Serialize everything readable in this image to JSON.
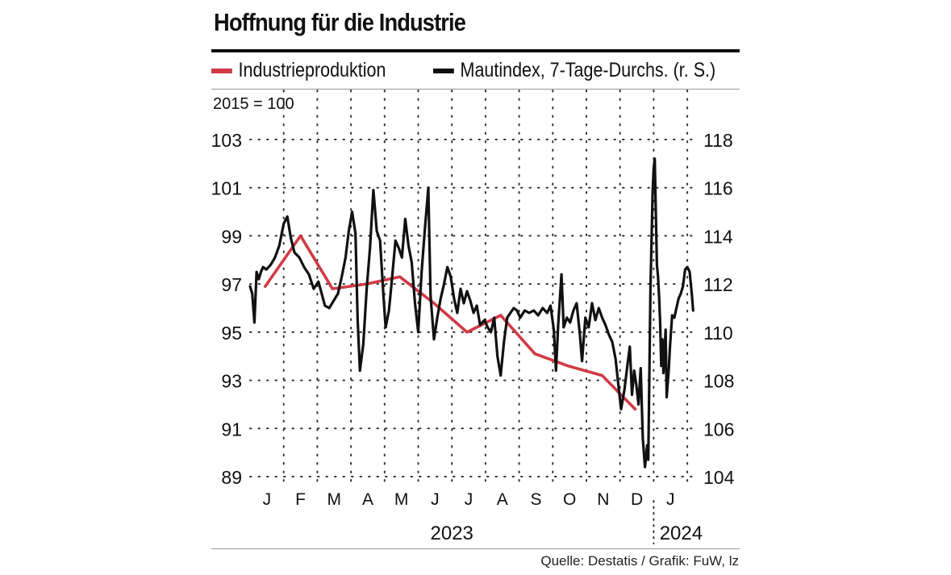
{
  "title": "Hoffnung für die Industrie",
  "unit_note": "2015 = 100",
  "source": "Quelle: Destatis / Grafik: FuW, lz",
  "colors": {
    "red": "#d13a45",
    "black": "#111111",
    "grid": "#333333"
  },
  "chart_data": {
    "type": "line",
    "x_axis": {
      "months": [
        "J",
        "F",
        "M",
        "A",
        "M",
        "J",
        "J",
        "A",
        "S",
        "O",
        "N",
        "D",
        "J"
      ],
      "years": [
        "2023",
        "2024"
      ]
    },
    "y_left": {
      "range": [
        89,
        103
      ],
      "ticks": [
        89,
        91,
        93,
        95,
        97,
        99,
        101,
        103
      ]
    },
    "y_right": {
      "range": [
        104,
        118
      ],
      "ticks": [
        104,
        106,
        108,
        110,
        112,
        114,
        116,
        118
      ]
    },
    "grid": "dotted",
    "legend_position": "top",
    "series": [
      {
        "name": "Industrieproduktion",
        "axis": "left",
        "color": "#d13a45",
        "points": [
          [
            "2023-01",
            96.9
          ],
          [
            "2023-02",
            99.0
          ],
          [
            "2023-03",
            96.8
          ],
          [
            "2023-04",
            97.0
          ],
          [
            "2023-05",
            97.3
          ],
          [
            "2023-06",
            96.2
          ],
          [
            "2023-07",
            95.0
          ],
          [
            "2023-08",
            95.7
          ],
          [
            "2023-09",
            94.1
          ],
          [
            "2023-10",
            93.6
          ],
          [
            "2023-11",
            93.2
          ],
          [
            "2023-12",
            91.8
          ]
        ]
      },
      {
        "name": "Mautindex, 7-Tage-Durchs. (r. S.)",
        "axis": "right",
        "color": "#111111",
        "points": [
          [
            "2023-01-01",
            111.9
          ],
          [
            "2023-01-03",
            111.6
          ],
          [
            "2023-01-05",
            110.4
          ],
          [
            "2023-01-07",
            112.5
          ],
          [
            "2023-01-09",
            112.2
          ],
          [
            "2023-01-11",
            112.5
          ],
          [
            "2023-01-13",
            112.7
          ],
          [
            "2023-01-16",
            112.6
          ],
          [
            "2023-01-20",
            112.8
          ],
          [
            "2023-01-24",
            113.1
          ],
          [
            "2023-01-28",
            113.6
          ],
          [
            "2023-02-01",
            114.5
          ],
          [
            "2023-02-04",
            114.8
          ],
          [
            "2023-02-07",
            113.9
          ],
          [
            "2023-02-10",
            113.3
          ],
          [
            "2023-02-14",
            113.1
          ],
          [
            "2023-02-18",
            112.7
          ],
          [
            "2023-02-22",
            112.4
          ],
          [
            "2023-02-26",
            111.8
          ],
          [
            "2023-03-02",
            112.1
          ],
          [
            "2023-03-05",
            111.6
          ],
          [
            "2023-03-08",
            111.1
          ],
          [
            "2023-03-12",
            111.0
          ],
          [
            "2023-03-16",
            111.3
          ],
          [
            "2023-03-20",
            111.6
          ],
          [
            "2023-03-24",
            112.4
          ],
          [
            "2023-03-27",
            113.1
          ],
          [
            "2023-03-30",
            114.2
          ],
          [
            "2023-04-02",
            115.0
          ],
          [
            "2023-04-05",
            114.1
          ],
          [
            "2023-04-07",
            110.5
          ],
          [
            "2023-04-09",
            108.4
          ],
          [
            "2023-04-12",
            109.5
          ],
          [
            "2023-04-15",
            111.8
          ],
          [
            "2023-04-18",
            113.5
          ],
          [
            "2023-04-21",
            115.9
          ],
          [
            "2023-04-24",
            114.2
          ],
          [
            "2023-04-27",
            113.8
          ],
          [
            "2023-04-30",
            111.5
          ],
          [
            "2023-05-02",
            110.2
          ],
          [
            "2023-05-05",
            110.9
          ],
          [
            "2023-05-08",
            112.3
          ],
          [
            "2023-05-11",
            113.8
          ],
          [
            "2023-05-14",
            113.5
          ],
          [
            "2023-05-17",
            113.1
          ],
          [
            "2023-05-20",
            114.7
          ],
          [
            "2023-05-23",
            113.6
          ],
          [
            "2023-05-26",
            112.9
          ],
          [
            "2023-05-29",
            111.2
          ],
          [
            "2023-06-01",
            110.0
          ],
          [
            "2023-06-04",
            112.5
          ],
          [
            "2023-06-07",
            114.3
          ],
          [
            "2023-06-10",
            116.0
          ],
          [
            "2023-06-12",
            111.5
          ],
          [
            "2023-06-15",
            109.7
          ],
          [
            "2023-06-18",
            110.6
          ],
          [
            "2023-06-21",
            111.4
          ],
          [
            "2023-06-24",
            112.0
          ],
          [
            "2023-06-27",
            112.7
          ],
          [
            "2023-06-30",
            112.3
          ],
          [
            "2023-07-03",
            111.4
          ],
          [
            "2023-07-06",
            110.8
          ],
          [
            "2023-07-09",
            111.8
          ],
          [
            "2023-07-12",
            111.2
          ],
          [
            "2023-07-15",
            111.7
          ],
          [
            "2023-07-18",
            111.3
          ],
          [
            "2023-07-21",
            110.8
          ],
          [
            "2023-07-24",
            111.1
          ],
          [
            "2023-07-27",
            110.3
          ],
          [
            "2023-07-31",
            110.5
          ],
          [
            "2023-08-03",
            110.2
          ],
          [
            "2023-08-06",
            110.0
          ],
          [
            "2023-08-09",
            110.6
          ],
          [
            "2023-08-12",
            109.0
          ],
          [
            "2023-08-15",
            108.2
          ],
          [
            "2023-08-18",
            109.6
          ],
          [
            "2023-08-21",
            110.6
          ],
          [
            "2023-08-24",
            110.8
          ],
          [
            "2023-08-27",
            111.0
          ],
          [
            "2023-08-30",
            110.9
          ],
          [
            "2023-09-02",
            110.6
          ],
          [
            "2023-09-06",
            110.9
          ],
          [
            "2023-09-10",
            110.8
          ],
          [
            "2023-09-14",
            110.9
          ],
          [
            "2023-09-18",
            110.7
          ],
          [
            "2023-09-22",
            111.0
          ],
          [
            "2023-09-26",
            110.8
          ],
          [
            "2023-09-29",
            111.1
          ],
          [
            "2023-10-02",
            110.1
          ],
          [
            "2023-10-04",
            108.4
          ],
          [
            "2023-10-06",
            110.3
          ],
          [
            "2023-10-09",
            112.4
          ],
          [
            "2023-10-11",
            110.2
          ],
          [
            "2023-10-14",
            110.6
          ],
          [
            "2023-10-17",
            110.4
          ],
          [
            "2023-10-20",
            110.9
          ],
          [
            "2023-10-23",
            111.2
          ],
          [
            "2023-10-26",
            109.9
          ],
          [
            "2023-10-28",
            108.8
          ],
          [
            "2023-10-31",
            110.6
          ],
          [
            "2023-11-03",
            110.2
          ],
          [
            "2023-11-06",
            111.2
          ],
          [
            "2023-11-09",
            110.5
          ],
          [
            "2023-11-12",
            111.0
          ],
          [
            "2023-11-15",
            110.6
          ],
          [
            "2023-11-18",
            110.3
          ],
          [
            "2023-11-21",
            109.9
          ],
          [
            "2023-11-24",
            109.6
          ],
          [
            "2023-11-27",
            108.9
          ],
          [
            "2023-11-30",
            107.6
          ],
          [
            "2023-12-02",
            106.8
          ],
          [
            "2023-12-05",
            107.6
          ],
          [
            "2023-12-08",
            108.7
          ],
          [
            "2023-12-10",
            109.4
          ],
          [
            "2023-12-12",
            107.4
          ],
          [
            "2023-12-14",
            108.4
          ],
          [
            "2023-12-16",
            107.8
          ],
          [
            "2023-12-18",
            107.0
          ],
          [
            "2023-12-20",
            108.5
          ],
          [
            "2023-12-22",
            105.6
          ],
          [
            "2023-12-24",
            104.4
          ],
          [
            "2023-12-26",
            105.3
          ],
          [
            "2023-12-27",
            104.7
          ],
          [
            "2023-12-29",
            111.8
          ],
          [
            "2023-12-31",
            115.8
          ],
          [
            "2024-01-01",
            116.8
          ],
          [
            "2024-01-02",
            117.2
          ],
          [
            "2024-01-04",
            112.8
          ],
          [
            "2024-01-05",
            112.3
          ],
          [
            "2024-01-06",
            111.5
          ],
          [
            "2024-01-07",
            110.3
          ],
          [
            "2024-01-08",
            108.6
          ],
          [
            "2024-01-09",
            109.7
          ],
          [
            "2024-01-10",
            108.3
          ],
          [
            "2024-01-12",
            110.1
          ],
          [
            "2024-01-13",
            107.3
          ],
          [
            "2024-01-15",
            108.5
          ],
          [
            "2024-01-16",
            109.4
          ],
          [
            "2024-01-18",
            110.7
          ],
          [
            "2024-01-20",
            110.6
          ],
          [
            "2024-01-22",
            111.0
          ],
          [
            "2024-01-24",
            111.4
          ],
          [
            "2024-01-26",
            111.6
          ],
          [
            "2024-01-28",
            111.9
          ],
          [
            "2024-01-30",
            112.6
          ],
          [
            "2024-02-01",
            112.7
          ],
          [
            "2024-02-03",
            112.5
          ],
          [
            "2024-02-05",
            111.5
          ],
          [
            "2024-02-06",
            110.9
          ]
        ]
      }
    ]
  },
  "legend": [
    {
      "label": "Industrieproduktion",
      "color": "#d13a45"
    },
    {
      "label": "Mautindex, 7-Tage-Durchs. (r. S.)",
      "color": "#111111"
    }
  ]
}
